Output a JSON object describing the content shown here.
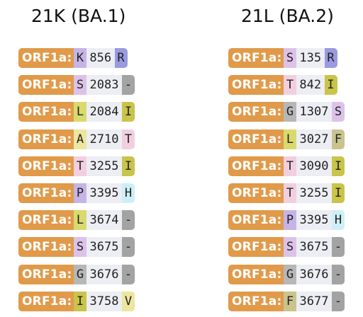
{
  "columns": [
    {
      "title": "21K (BA.1)",
      "mutations": [
        {
          "gene": "ORF1a:",
          "ref": "K",
          "pos": "856",
          "alt": "R",
          "ref_color": "#c6b4e6",
          "alt_color": "#9a9ae0"
        },
        {
          "gene": "ORF1a:",
          "ref": "S",
          "pos": "2083",
          "alt": "-",
          "ref_color": "#dcc2e8",
          "alt_color": "#a3a3a3"
        },
        {
          "gene": "ORF1a:",
          "ref": "L",
          "pos": "2084",
          "alt": "I",
          "ref_color": "#d9da6e",
          "alt_color": "#c9c44a"
        },
        {
          "gene": "ORF1a:",
          "ref": "A",
          "pos": "2710",
          "alt": "T",
          "ref_color": "#ece6a0",
          "alt_color": "#f2cfdf"
        },
        {
          "gene": "ORF1a:",
          "ref": "T",
          "pos": "3255",
          "alt": "I",
          "ref_color": "#f2cfdf",
          "alt_color": "#c9c44a"
        },
        {
          "gene": "ORF1a:",
          "ref": "P",
          "pos": "3395",
          "alt": "H",
          "ref_color": "#c6b4e6",
          "alt_color": "#cdeff7"
        },
        {
          "gene": "ORF1a:",
          "ref": "L",
          "pos": "3674",
          "alt": "-",
          "ref_color": "#d9da6e",
          "alt_color": "#a3a3a3"
        },
        {
          "gene": "ORF1a:",
          "ref": "S",
          "pos": "3675",
          "alt": "-",
          "ref_color": "#dcc2e8",
          "alt_color": "#a3a3a3"
        },
        {
          "gene": "ORF1a:",
          "ref": "G",
          "pos": "3676",
          "alt": "-",
          "ref_color": "#b7b7b7",
          "alt_color": "#a3a3a3"
        },
        {
          "gene": "ORF1a:",
          "ref": "I",
          "pos": "3758",
          "alt": "V",
          "ref_color": "#c9c44a",
          "alt_color": "#ece6a0"
        }
      ]
    },
    {
      "title": "21L (BA.2)",
      "mutations": [
        {
          "gene": "ORF1a:",
          "ref": "S",
          "pos": "135",
          "alt": "R",
          "ref_color": "#dcc2e8",
          "alt_color": "#9a9ae0"
        },
        {
          "gene": "ORF1a:",
          "ref": "T",
          "pos": "842",
          "alt": "I",
          "ref_color": "#f2cfdf",
          "alt_color": "#c9c44a"
        },
        {
          "gene": "ORF1a:",
          "ref": "G",
          "pos": "1307",
          "alt": "S",
          "ref_color": "#b7b7b7",
          "alt_color": "#dcc2e8"
        },
        {
          "gene": "ORF1a:",
          "ref": "L",
          "pos": "3027",
          "alt": "F",
          "ref_color": "#d9da6e",
          "alt_color": "#c9c48e"
        },
        {
          "gene": "ORF1a:",
          "ref": "T",
          "pos": "3090",
          "alt": "I",
          "ref_color": "#f2cfdf",
          "alt_color": "#c9c44a"
        },
        {
          "gene": "ORF1a:",
          "ref": "T",
          "pos": "3255",
          "alt": "I",
          "ref_color": "#f2cfdf",
          "alt_color": "#c9c44a"
        },
        {
          "gene": "ORF1a:",
          "ref": "P",
          "pos": "3395",
          "alt": "H",
          "ref_color": "#c6b4e6",
          "alt_color": "#cdeff7"
        },
        {
          "gene": "ORF1a:",
          "ref": "S",
          "pos": "3675",
          "alt": "-",
          "ref_color": "#dcc2e8",
          "alt_color": "#a3a3a3"
        },
        {
          "gene": "ORF1a:",
          "ref": "G",
          "pos": "3676",
          "alt": "-",
          "ref_color": "#b7b7b7",
          "alt_color": "#a3a3a3"
        },
        {
          "gene": "ORF1a:",
          "ref": "F",
          "pos": "3677",
          "alt": "-",
          "ref_color": "#c9c48e",
          "alt_color": "#a3a3a3"
        }
      ]
    }
  ]
}
